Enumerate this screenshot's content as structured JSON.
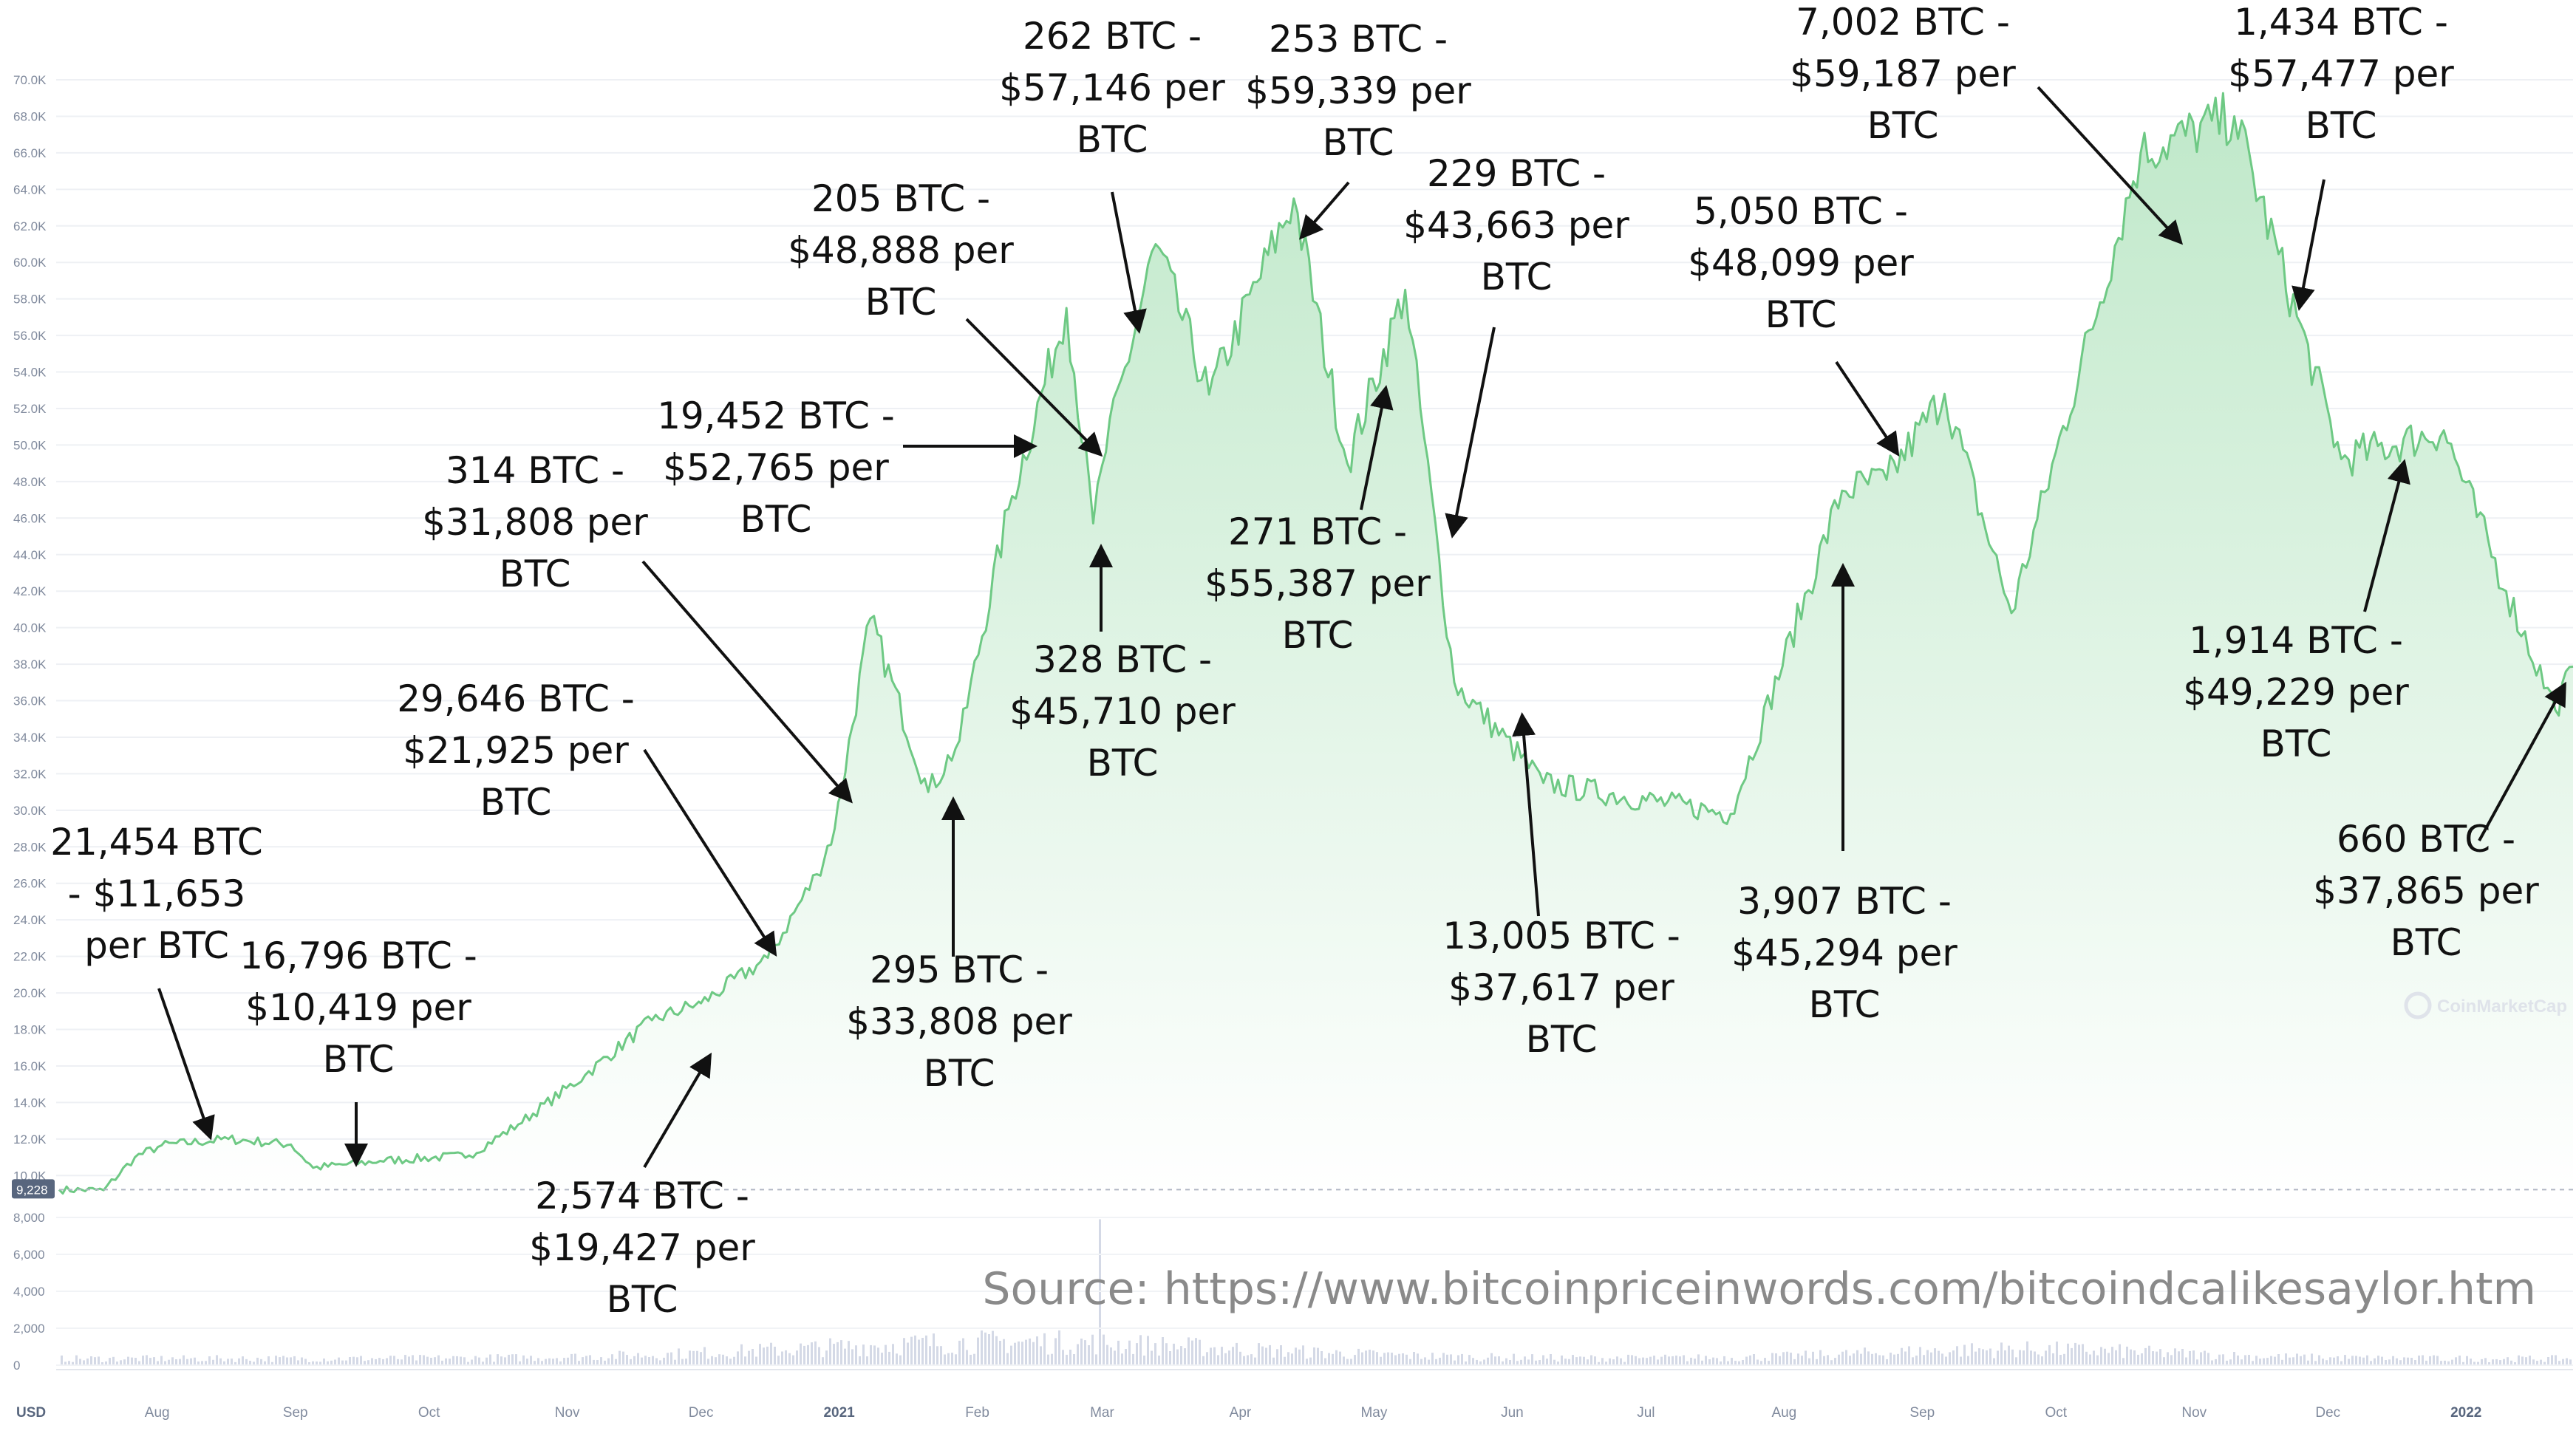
{
  "chart_data": {
    "type": "area",
    "y_axis": {
      "ticks": [
        "70.0K",
        "68.0K",
        "66.0K",
        "64.0K",
        "62.0K",
        "60.0K",
        "58.0K",
        "56.0K",
        "54.0K",
        "52.0K",
        "50.0K",
        "48.0K",
        "46.0K",
        "44.0K",
        "42.0K",
        "40.0K",
        "38.0K",
        "36.0K",
        "34.0K",
        "32.0K",
        "30.0K",
        "28.0K",
        "26.0K",
        "24.0K",
        "22.0K",
        "20.0K",
        "18.0K",
        "16.0K",
        "14.0K",
        "12.0K",
        "10.0K"
      ],
      "ylim": [
        9000,
        70000
      ],
      "current_price_label": "9,228"
    },
    "volume_axis": {
      "ticks": [
        "8,000",
        "6,000",
        "4,000",
        "2,000",
        "0"
      ]
    },
    "x_axis": {
      "currency_label": "USD",
      "ticks": [
        "Aug",
        "Sep",
        "Oct",
        "Nov",
        "Dec",
        "2021",
        "Feb",
        "Mar",
        "Apr",
        "May",
        "Jun",
        "Jul",
        "Aug",
        "Sep",
        "Oct",
        "Nov",
        "Dec",
        "2022"
      ],
      "range": [
        "2020-07-10",
        "2022-01-25"
      ]
    },
    "series": [
      {
        "values": [
          {
            "x": "2020-07-10",
            "y": 9228
          },
          {
            "x": "2020-07-20",
            "y": 9200
          },
          {
            "x": "2020-07-27",
            "y": 11000
          },
          {
            "x": "2020-08-02",
            "y": 11653
          },
          {
            "x": "2020-08-17",
            "y": 12000
          },
          {
            "x": "2020-08-31",
            "y": 11700
          },
          {
            "x": "2020-09-05",
            "y": 10419
          },
          {
            "x": "2020-09-20",
            "y": 10800
          },
          {
            "x": "2020-10-10",
            "y": 11100
          },
          {
            "x": "2020-10-21",
            "y": 12800
          },
          {
            "x": "2020-11-05",
            "y": 15500
          },
          {
            "x": "2020-11-20",
            "y": 18500
          },
          {
            "x": "2020-11-30",
            "y": 19400
          },
          {
            "x": "2020-12-01",
            "y": 19427
          },
          {
            "x": "2020-12-16",
            "y": 21925
          },
          {
            "x": "2020-12-27",
            "y": 26500
          },
          {
            "x": "2020-12-31",
            "y": 29000
          },
          {
            "x": "2021-01-08",
            "y": 40500
          },
          {
            "x": "2021-01-21",
            "y": 31000
          },
          {
            "x": "2021-01-28",
            "y": 33808
          },
          {
            "x": "2021-02-08",
            "y": 46500
          },
          {
            "x": "2021-02-21",
            "y": 57500
          },
          {
            "x": "2021-02-27",
            "y": 45710
          },
          {
            "x": "2021-03-01",
            "y": 48888
          },
          {
            "x": "2021-03-13",
            "y": 61000
          },
          {
            "x": "2021-03-25",
            "y": 52765
          },
          {
            "x": "2021-04-13",
            "y": 63500
          },
          {
            "x": "2021-04-25",
            "y": 49000
          },
          {
            "x": "2021-05-08",
            "y": 58500
          },
          {
            "x": "2021-05-19",
            "y": 37000
          },
          {
            "x": "2021-06-08",
            "y": 31500
          },
          {
            "x": "2021-07-20",
            "y": 29800
          },
          {
            "x": "2021-08-14",
            "y": 47500
          },
          {
            "x": "2021-08-24",
            "y": 48099
          },
          {
            "x": "2021-09-06",
            "y": 52800
          },
          {
            "x": "2021-09-21",
            "y": 40800
          },
          {
            "x": "2021-10-20",
            "y": 66000
          },
          {
            "x": "2021-11-10",
            "y": 68000
          },
          {
            "x": "2021-12-04",
            "y": 49229
          },
          {
            "x": "2021-12-27",
            "y": 50800
          },
          {
            "x": "2022-01-10",
            "y": 42000
          },
          {
            "x": "2022-01-21",
            "y": 35500
          },
          {
            "x": "2022-01-25",
            "y": 37865
          }
        ]
      }
    ],
    "annotations": [
      {
        "lines": [
          "21,454 BTC",
          "- $11,653",
          "per BTC"
        ],
        "x": "2020-08-02",
        "y": 11653
      },
      {
        "lines": [
          "16,796 BTC -",
          "$10,419 per",
          "BTC"
        ],
        "x": "2020-09-05",
        "y": 10419
      },
      {
        "lines": [
          "2,574 BTC -",
          "$19,427 per",
          "BTC"
        ],
        "x": "2020-12-01",
        "y": 19427
      },
      {
        "lines": [
          "29,646 BTC -",
          "$21,925 per",
          "BTC"
        ],
        "x": "2020-12-16",
        "y": 21925
      },
      {
        "lines": [
          "314 BTC -",
          "$31,808 per",
          "BTC"
        ],
        "x": "2020-12-30",
        "y": 31808
      },
      {
        "lines": [
          "295 BTC -",
          "$33,808 per",
          "BTC"
        ],
        "x": "2021-01-28",
        "y": 33808
      },
      {
        "lines": [
          "19,452 BTC -",
          "$52,765 per",
          "BTC"
        ],
        "x": "2021-02-16",
        "y": 52765
      },
      {
        "lines": [
          "328 BTC -",
          "$45,710 per",
          "BTC"
        ],
        "x": "2021-02-27",
        "y": 45710
      },
      {
        "lines": [
          "205 BTC -",
          "$48,888 per",
          "BTC"
        ],
        "x": "2021-03-01",
        "y": 48888
      },
      {
        "lines": [
          "262 BTC -",
          "$57,146 per",
          "BTC"
        ],
        "x": "2021-03-12",
        "y": 57146
      },
      {
        "lines": [
          "253 BTC -",
          "$59,339 per",
          "BTC"
        ],
        "x": "2021-04-14",
        "y": 59339
      },
      {
        "lines": [
          "271 BTC -",
          "$55,387 per",
          "BTC"
        ],
        "x": "2021-05-13",
        "y": 55387
      },
      {
        "lines": [
          "229 BTC -",
          "$43,663 per",
          "BTC"
        ],
        "x": "2021-05-19",
        "y": 43663
      },
      {
        "lines": [
          "13,005 BTC -",
          "$37,617 per",
          "BTC"
        ],
        "x": "2021-06-18",
        "y": 37617
      },
      {
        "lines": [
          "3,907 BTC -",
          "$45,294 per",
          "BTC"
        ],
        "x": "2021-08-23",
        "y": 45294
      },
      {
        "lines": [
          "5,050 BTC -",
          "$48,099 per",
          "BTC"
        ],
        "x": "2021-08-24",
        "y": 48099
      },
      {
        "lines": [
          "7,002 BTC -",
          "$59,187 per",
          "BTC"
        ],
        "x": "2021-11-09",
        "y": 59187
      },
      {
        "lines": [
          "1,434 BTC -",
          "$57,477 per",
          "BTC"
        ],
        "x": "2021-11-29",
        "y": 57477
      },
      {
        "lines": [
          "1,914 BTC -",
          "$49,229 per",
          "BTC"
        ],
        "x": "2021-12-27",
        "y": 49229
      },
      {
        "lines": [
          "660 BTC -",
          "$37,865 per",
          "BTC"
        ],
        "x": "2022-01-24",
        "y": 37865
      }
    ],
    "source_text": "Source: https://www.bitcoinpriceinwords.com/bitcoindcalikesaylor.htm",
    "watermark": "CoinMarketCap",
    "colors": {
      "line": "#6ec984",
      "fill_top": "#bfe8c9",
      "fill_bottom": "#ffffff",
      "volume": "#d4d9e6",
      "text": "#111111",
      "tick": "#808a9d",
      "source": "#8a8a8a"
    },
    "grid": true
  }
}
